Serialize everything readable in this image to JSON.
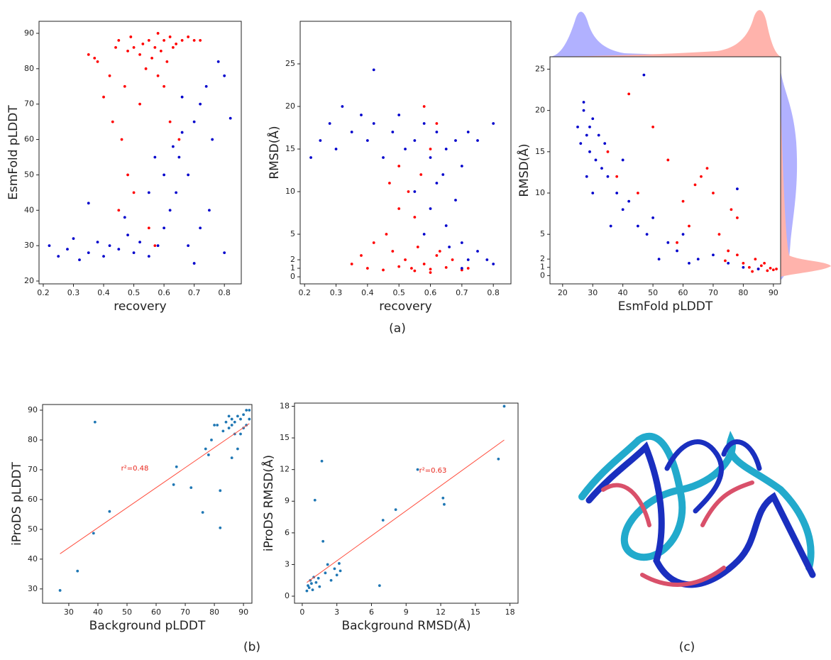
{
  "chart_data": [
    {
      "type": "scatter",
      "xlabel": "recovery",
      "ylabel": "EsmFold pLDDT",
      "xlim": [
        0.186,
        0.856
      ],
      "ylim": [
        19.2,
        93.4
      ],
      "xticks": [
        0.2,
        0.3,
        0.4,
        0.5,
        0.6,
        0.7,
        0.8
      ],
      "yticks": [
        20,
        30,
        40,
        50,
        60,
        70,
        80,
        90
      ],
      "series": [
        {
          "color": "#ff0000",
          "x": [
            0.35,
            0.37,
            0.38,
            0.4,
            0.42,
            0.44,
            0.45,
            0.46,
            0.47,
            0.48,
            0.49,
            0.5,
            0.5,
            0.52,
            0.53,
            0.54,
            0.55,
            0.56,
            0.57,
            0.58,
            0.58,
            0.59,
            0.6,
            0.61,
            0.62,
            0.63,
            0.64,
            0.66,
            0.68,
            0.7,
            0.72,
            0.45,
            0.48,
            0.55,
            0.57,
            0.62,
            0.65,
            0.52,
            0.43,
            0.6
          ],
          "values": [
            84,
            83,
            82,
            72,
            78,
            86,
            88,
            60,
            75,
            85,
            89,
            86,
            45,
            84,
            87,
            80,
            88,
            83,
            86,
            90,
            78,
            85,
            88,
            82,
            89,
            86,
            87,
            88,
            89,
            88,
            88,
            40,
            50,
            35,
            30,
            65,
            60,
            70,
            65,
            75
          ]
        },
        {
          "color": "#0000cc",
          "x": [
            0.22,
            0.25,
            0.28,
            0.3,
            0.32,
            0.35,
            0.38,
            0.4,
            0.42,
            0.45,
            0.48,
            0.5,
            0.52,
            0.55,
            0.58,
            0.6,
            0.62,
            0.64,
            0.65,
            0.66,
            0.68,
            0.7,
            0.72,
            0.74,
            0.76,
            0.78,
            0.8,
            0.82,
            0.72,
            0.75,
            0.68,
            0.55,
            0.6,
            0.7,
            0.8,
            0.35,
            0.47,
            0.57,
            0.66,
            0.63
          ],
          "values": [
            30,
            27,
            29,
            32,
            26,
            28,
            31,
            27,
            30,
            29,
            33,
            28,
            31,
            27,
            30,
            35,
            40,
            45,
            55,
            62,
            50,
            65,
            70,
            75,
            60,
            82,
            78,
            66,
            35,
            40,
            30,
            45,
            50,
            25,
            28,
            42,
            38,
            55,
            72,
            58
          ]
        }
      ]
    },
    {
      "type": "scatter",
      "xlabel": "recovery",
      "ylabel": "RMSD(Å)",
      "xlim": [
        0.186,
        0.856
      ],
      "ylim": [
        -0.83,
        30
      ],
      "xticks": [
        0.2,
        0.3,
        0.4,
        0.5,
        0.6,
        0.7,
        0.8
      ],
      "yticks": [
        0,
        1,
        2,
        5,
        10,
        15,
        20,
        25
      ],
      "series": [
        {
          "color": "#ff0000",
          "x": [
            0.4,
            0.45,
            0.5,
            0.55,
            0.6,
            0.65,
            0.7,
            0.58,
            0.52,
            0.62,
            0.48,
            0.56,
            0.35,
            0.42,
            0.46,
            0.5,
            0.53,
            0.55,
            0.57,
            0.6,
            0.62,
            0.58,
            0.5,
            0.47,
            0.63,
            0.67,
            0.72,
            0.38,
            0.54,
            0.6
          ],
          "values": [
            1,
            0.8,
            1.2,
            0.7,
            0.9,
            1.1,
            0.8,
            1.5,
            2,
            2.5,
            3,
            3.5,
            1.5,
            4,
            5,
            8,
            10,
            7,
            12,
            15,
            18,
            20,
            13,
            11,
            3,
            2,
            1,
            2.5,
            1,
            0.5
          ]
        },
        {
          "color": "#0000cc",
          "x": [
            0.22,
            0.25,
            0.28,
            0.3,
            0.32,
            0.35,
            0.38,
            0.4,
            0.42,
            0.45,
            0.48,
            0.5,
            0.52,
            0.55,
            0.58,
            0.6,
            0.62,
            0.65,
            0.68,
            0.7,
            0.72,
            0.75,
            0.8,
            0.42,
            0.55,
            0.6,
            0.65,
            0.7,
            0.72,
            0.75,
            0.78,
            0.68,
            0.62,
            0.58,
            0.7,
            0.8,
            0.64,
            0.66
          ],
          "values": [
            14,
            16,
            18,
            15,
            20,
            17,
            19,
            16,
            18,
            14,
            17,
            19,
            15,
            16,
            18,
            14,
            17,
            15,
            16,
            13,
            17,
            16,
            18,
            24.3,
            10,
            8,
            6,
            4,
            2,
            3,
            2,
            9,
            11,
            5,
            1,
            1.5,
            12,
            3.5
          ]
        }
      ]
    },
    {
      "type": "scatter",
      "xlabel": "EsmFold pLDDT",
      "ylabel": "RMSD(Å)",
      "xlim": [
        15.8,
        92.4
      ],
      "ylim": [
        -1.0,
        26.5
      ],
      "xticks": [
        20,
        30,
        40,
        50,
        60,
        70,
        80,
        90
      ],
      "yticks": [
        0,
        1,
        2,
        5,
        10,
        15,
        20,
        25
      ],
      "series": [
        {
          "color": "#ff0000",
          "x": [
            85,
            88,
            90,
            82,
            86,
            80,
            84,
            78,
            75,
            72,
            76,
            78,
            70,
            66,
            68,
            64,
            60,
            55,
            50,
            42,
            38,
            35,
            45,
            58,
            62,
            74,
            87,
            89,
            83,
            91
          ],
          "values": [
            0.8,
            0.6,
            0.7,
            1,
            1.2,
            1.5,
            2,
            2.5,
            3,
            5,
            8,
            7,
            10,
            12,
            13,
            11,
            9,
            14,
            18,
            22,
            12,
            15,
            10,
            4,
            6,
            1.8,
            1.5,
            0.9,
            0.5,
            0.8
          ]
        },
        {
          "color": "#0000cc",
          "x": [
            25,
            26,
            27,
            28,
            29,
            30,
            31,
            32,
            27,
            33,
            35,
            38,
            40,
            42,
            45,
            48,
            50,
            55,
            58,
            60,
            65,
            70,
            75,
            80,
            85,
            28,
            30,
            47,
            36,
            52,
            62,
            78,
            34,
            29,
            40
          ],
          "values": [
            18,
            16,
            20,
            17,
            15,
            19,
            14,
            17,
            21,
            13,
            12,
            10,
            8,
            9,
            6,
            5,
            7,
            4,
            3,
            5,
            2,
            2.5,
            1.5,
            1,
            0.8,
            12,
            10,
            24.3,
            6,
            2,
            1.5,
            10.5,
            16,
            18,
            14
          ]
        }
      ]
    },
    {
      "type": "scatter",
      "xlabel": "Background pLDDT",
      "ylabel": "iProDS pLDDT",
      "xlim": [
        21,
        92.9
      ],
      "ylim": [
        25.2,
        91.9
      ],
      "xticks": [
        30,
        40,
        50,
        60,
        70,
        80,
        90
      ],
      "yticks": [
        30,
        40,
        50,
        60,
        70,
        80,
        90
      ],
      "annotation": "r²=0.48",
      "fit_line": {
        "color": "#ff4d3d",
        "x": [
          27,
          92
        ],
        "y": [
          41.8,
          85.5
        ]
      },
      "series": [
        {
          "color": "#1f77b4",
          "x": [
            27,
            33,
            38.5,
            39,
            44,
            66,
            67,
            72,
            76,
            77,
            78,
            79,
            80,
            81,
            82,
            82,
            83,
            84,
            85,
            86,
            86,
            87,
            87,
            88,
            88,
            89,
            89,
            90,
            90,
            91,
            91,
            92,
            92,
            85,
            86
          ],
          "values": [
            29.5,
            36,
            48.7,
            86,
            56,
            65,
            71,
            64,
            55.7,
            77,
            75,
            80,
            85,
            85,
            63,
            50.5,
            83,
            86,
            84,
            74,
            87,
            82,
            86,
            88,
            77,
            82,
            87,
            88.5,
            84,
            90,
            85,
            90,
            87,
            88,
            85
          ]
        }
      ]
    },
    {
      "type": "scatter",
      "xlabel": "Background RMSD(Å)",
      "ylabel": "iProDS RMSD(Å)",
      "xlim": [
        -0.67,
        18.7
      ],
      "ylim": [
        -0.67,
        18.3
      ],
      "xticks": [
        0,
        3,
        6,
        9,
        12,
        15,
        18
      ],
      "yticks": [
        0,
        3,
        6,
        9,
        12,
        15,
        18
      ],
      "annotation": "r²=0.63",
      "fit_line": {
        "color": "#ff4d3d",
        "x": [
          0.4,
          17.5
        ],
        "y": [
          1.3,
          14.8
        ]
      },
      "series": [
        {
          "color": "#1f77b4",
          "x": [
            0.4,
            0.5,
            0.6,
            0.7,
            0.8,
            1,
            1.1,
            1.2,
            1.5,
            1.7,
            1.8,
            2,
            2.2,
            2.5,
            2.8,
            3,
            3.2,
            3.3,
            6.7,
            7,
            8.1,
            10,
            12.2,
            12.3,
            17,
            17.5,
            1.4,
            0.9
          ],
          "values": [
            0.5,
            1,
            0.8,
            1.5,
            1.2,
            1.8,
            9.1,
            1.3,
            0.9,
            12.8,
            5.2,
            2.2,
            3,
            1.5,
            2.6,
            2,
            3.1,
            2.4,
            1,
            7.2,
            8.2,
            12,
            9.3,
            8.7,
            13,
            18,
            1.7,
            0.6
          ]
        }
      ]
    }
  ],
  "panel_labels": [
    "(a)",
    "(b)",
    "(c)"
  ]
}
